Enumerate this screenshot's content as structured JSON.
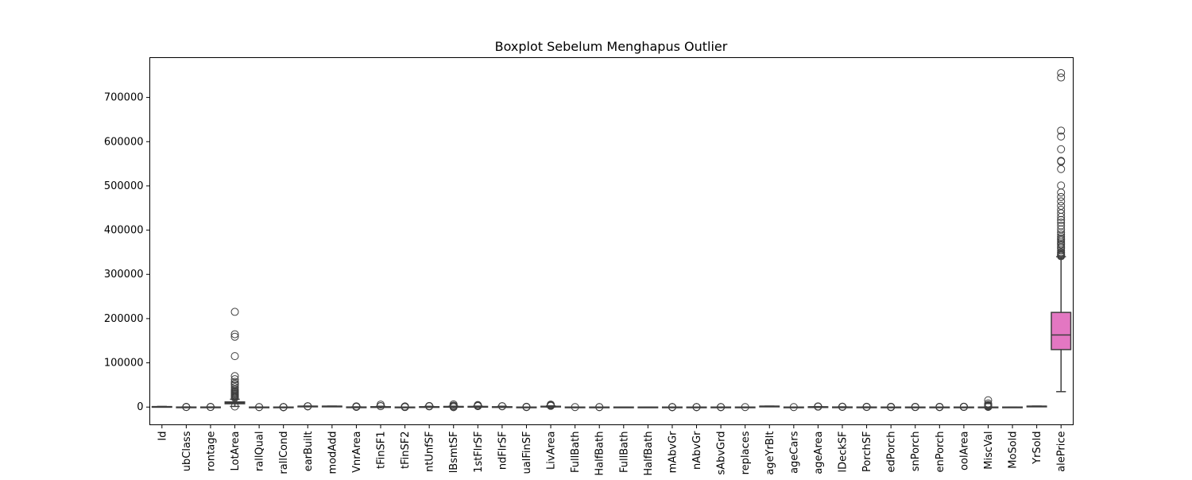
{
  "chart_data": {
    "type": "boxplot",
    "title": "Boxplot Sebelum Menghapus Outlier",
    "xlabel": "",
    "ylabel": "",
    "ylim": [
      -40000,
      790000
    ],
    "y_ticks": [
      0,
      100000,
      200000,
      300000,
      400000,
      500000,
      600000,
      700000
    ],
    "y_tick_labels": [
      "0",
      "100000",
      "200000",
      "300000",
      "400000",
      "500000",
      "600000",
      "700000"
    ],
    "grid": false,
    "legend": "none",
    "categories": [
      "Id",
      "ubClass",
      "rontage",
      "LotArea",
      "rallQual",
      "rallCond",
      "earBuilt",
      "modAdd",
      "VnrArea",
      "tFinSF1",
      "tFinSF2",
      "ntUnfSF",
      "lBsmtSF",
      "1stFlrSF",
      "ndFlrSF",
      "ualFinSF",
      "LivArea",
      "FullBath",
      "HalfBath",
      "FullBath",
      "HalfBath",
      "mAbvGr",
      "nAbvGr",
      "sAbvGrd",
      "replaces",
      "ageYrBlt",
      "ageCars",
      "ageArea",
      "lDeckSF",
      "PorchSF",
      "edPorch",
      "snPorch",
      "enPorch",
      "oolArea",
      "MiscVal",
      "MoSold",
      "YrSold",
      "alePrice"
    ],
    "boxes": [
      {
        "q1": 365,
        "median": 730,
        "q3": 1095,
        "whislo": 1,
        "whishi": 1460,
        "fliers": [],
        "color": "#3274a1"
      },
      {
        "q1": 20,
        "median": 50,
        "q3": 70,
        "whislo": 20,
        "whishi": 145,
        "fliers": [
          160,
          180,
          190,
          190
        ],
        "color": "#e1812c"
      },
      {
        "q1": 59,
        "median": 69,
        "q3": 80,
        "whislo": 21,
        "whishi": 111,
        "fliers": [
          150,
          182,
          313
        ],
        "color": "#3a923a"
      },
      {
        "q1": 7554,
        "median": 9478,
        "q3": 11602,
        "whislo": 1491,
        "whishi": 17671,
        "fliers": [
          1300,
          21000,
          23000,
          25000,
          27000,
          29000,
          31000,
          33000,
          35000,
          37000,
          40000,
          45000,
          50000,
          53000,
          57000,
          63000,
          70000,
          115149,
          159000,
          164660,
          215245
        ],
        "color": "#c03d3e"
      },
      {
        "q1": 5,
        "median": 6,
        "q3": 7,
        "whislo": 2,
        "whishi": 10,
        "fliers": [
          1,
          1
        ],
        "color": "#9372b2"
      },
      {
        "q1": 5,
        "median": 5,
        "q3": 6,
        "whislo": 4,
        "whishi": 7,
        "fliers": [
          1,
          2,
          3,
          8,
          9
        ],
        "color": "#845b53"
      },
      {
        "q1": 1954,
        "median": 1973,
        "q3": 2000,
        "whislo": 1885,
        "whishi": 2010,
        "fliers": [
          1872,
          1875,
          1880
        ],
        "color": "#d684bd"
      },
      {
        "q1": 1967,
        "median": 1994,
        "q3": 2004,
        "whislo": 1950,
        "whishi": 2010,
        "fliers": [],
        "color": "#7f7f7f"
      },
      {
        "q1": 0,
        "median": 0,
        "q3": 166,
        "whislo": 0,
        "whishi": 415,
        "fliers": [
          500,
          700,
          900,
          1100,
          1378,
          1600
        ],
        "color": "#a9aa35"
      },
      {
        "q1": 0,
        "median": 384,
        "q3": 712,
        "whislo": 0,
        "whishi": 1780,
        "fliers": [
          2000,
          2260,
          5644
        ],
        "color": "#2ed0c0"
      },
      {
        "q1": 0,
        "median": 0,
        "q3": 0,
        "whislo": 0,
        "whishi": 0,
        "fliers": [
          100,
          300,
          500,
          700,
          900,
          1127,
          1474
        ],
        "color": "#3274a1"
      },
      {
        "q1": 223,
        "median": 478,
        "q3": 808,
        "whislo": 0,
        "whishi": 1685,
        "fliers": [
          1700,
          1900,
          2153,
          2336
        ],
        "color": "#e1812c"
      },
      {
        "q1": 796,
        "median": 992,
        "q3": 1298,
        "whislo": 105,
        "whishi": 2046,
        "fliers": [
          0,
          0,
          2100,
          2400,
          3000,
          3200,
          6110
        ],
        "color": "#3a923a"
      },
      {
        "q1": 882,
        "median": 1087,
        "q3": 1391,
        "whislo": 334,
        "whishi": 2155,
        "fliers": [
          2200,
          2400,
          2600,
          3000,
          3228,
          4692
        ],
        "color": "#c03d3e"
      },
      {
        "q1": 0,
        "median": 0,
        "q3": 728,
        "whislo": 0,
        "whishi": 1818,
        "fliers": [
          1872,
          2065
        ],
        "color": "#9372b2"
      },
      {
        "q1": 0,
        "median": 0,
        "q3": 0,
        "whislo": 0,
        "whishi": 0,
        "fliers": [
          53,
          205,
          360,
          572
        ],
        "color": "#845b53"
      },
      {
        "q1": 1129,
        "median": 1464,
        "q3": 1776,
        "whislo": 334,
        "whishi": 2730,
        "fliers": [
          2800,
          3000,
          3300,
          3600,
          4316,
          4676,
          5642
        ],
        "color": "#d684bd"
      },
      {
        "q1": 0,
        "median": 0,
        "q3": 1,
        "whislo": 0,
        "whishi": 2,
        "fliers": [
          3
        ],
        "color": "#7f7f7f"
      },
      {
        "q1": 0,
        "median": 0,
        "q3": 0,
        "whislo": 0,
        "whishi": 0,
        "fliers": [
          1,
          2
        ],
        "color": "#a9aa35"
      },
      {
        "q1": 1,
        "median": 2,
        "q3": 2,
        "whislo": 0,
        "whishi": 3,
        "fliers": [],
        "color": "#2ed0c0"
      },
      {
        "q1": 0,
        "median": 0,
        "q3": 1,
        "whislo": 0,
        "whishi": 2,
        "fliers": [],
        "color": "#3274a1"
      },
      {
        "q1": 2,
        "median": 3,
        "q3": 3,
        "whislo": 1,
        "whishi": 4,
        "fliers": [
          0,
          5,
          6,
          8
        ],
        "color": "#e1812c"
      },
      {
        "q1": 1,
        "median": 1,
        "q3": 1,
        "whislo": 1,
        "whishi": 1,
        "fliers": [
          0,
          2,
          3
        ],
        "color": "#3a923a"
      },
      {
        "q1": 5,
        "median": 6,
        "q3": 7,
        "whislo": 2,
        "whishi": 10,
        "fliers": [
          11,
          12,
          14
        ],
        "color": "#c03d3e"
      },
      {
        "q1": 0,
        "median": 1,
        "q3": 1,
        "whislo": 0,
        "whishi": 2,
        "fliers": [
          3
        ],
        "color": "#9372b2"
      },
      {
        "q1": 1961,
        "median": 1980,
        "q3": 2002,
        "whislo": 1900,
        "whishi": 2010,
        "fliers": [],
        "color": "#845b53"
      },
      {
        "q1": 1,
        "median": 2,
        "q3": 2,
        "whislo": 0,
        "whishi": 3,
        "fliers": [
          4
        ],
        "color": "#d684bd"
      },
      {
        "q1": 334,
        "median": 480,
        "q3": 576,
        "whislo": 0,
        "whishi": 936,
        "fliers": [
          1000,
          1200,
          1390,
          1418
        ],
        "color": "#7f7f7f"
      },
      {
        "q1": 0,
        "median": 0,
        "q3": 168,
        "whislo": 0,
        "whishi": 420,
        "fliers": [
          500,
          600,
          736,
          857
        ],
        "color": "#a9aa35"
      },
      {
        "q1": 0,
        "median": 25,
        "q3": 68,
        "whislo": 0,
        "whishi": 170,
        "fliers": [
          200,
          300,
          400,
          547
        ],
        "color": "#2ed0c0"
      },
      {
        "q1": 0,
        "median": 0,
        "q3": 0,
        "whislo": 0,
        "whishi": 0,
        "fliers": [
          30,
          100,
          200,
          300,
          386,
          552
        ],
        "color": "#3274a1"
      },
      {
        "q1": 0,
        "median": 0,
        "q3": 0,
        "whislo": 0,
        "whishi": 0,
        "fliers": [
          96,
          168,
          304,
          508
        ],
        "color": "#e1812c"
      },
      {
        "q1": 0,
        "median": 0,
        "q3": 0,
        "whislo": 0,
        "whishi": 0,
        "fliers": [
          60,
          120,
          200,
          300,
          480
        ],
        "color": "#3a923a"
      },
      {
        "q1": 0,
        "median": 0,
        "q3": 0,
        "whislo": 0,
        "whishi": 0,
        "fliers": [
          480,
          512,
          555,
          576,
          648,
          738
        ],
        "color": "#c03d3e"
      },
      {
        "q1": 0,
        "median": 0,
        "q3": 0,
        "whislo": 0,
        "whishi": 0,
        "fliers": [
          400,
          700,
          1200,
          2000,
          2500,
          3500,
          5000,
          8300,
          15500
        ],
        "color": "#9372b2"
      },
      {
        "q1": 5,
        "median": 6,
        "q3": 8,
        "whislo": 1,
        "whishi": 12,
        "fliers": [],
        "color": "#845b53"
      },
      {
        "q1": 2007,
        "median": 2008,
        "q3": 2009,
        "whislo": 2006,
        "whishi": 2010,
        "fliers": [],
        "color": "#d684bd"
      },
      {
        "q1": 129975,
        "median": 163000,
        "q3": 214000,
        "whislo": 34900,
        "whishi": 340000,
        "fliers": [
          341000,
          343000,
          345000,
          348000,
          350000,
          354000,
          359000,
          362000,
          367000,
          370000,
          374000,
          378000,
          381000,
          385000,
          390000,
          395000,
          402000,
          410000,
          417000,
          423000,
          430000,
          438000,
          446000,
          455000,
          465000,
          475000,
          485000,
          501000,
          538000,
          555000,
          556581,
          582933,
          611657,
          625000,
          745000,
          755000
        ],
        "color": "#e377c2"
      }
    ]
  }
}
